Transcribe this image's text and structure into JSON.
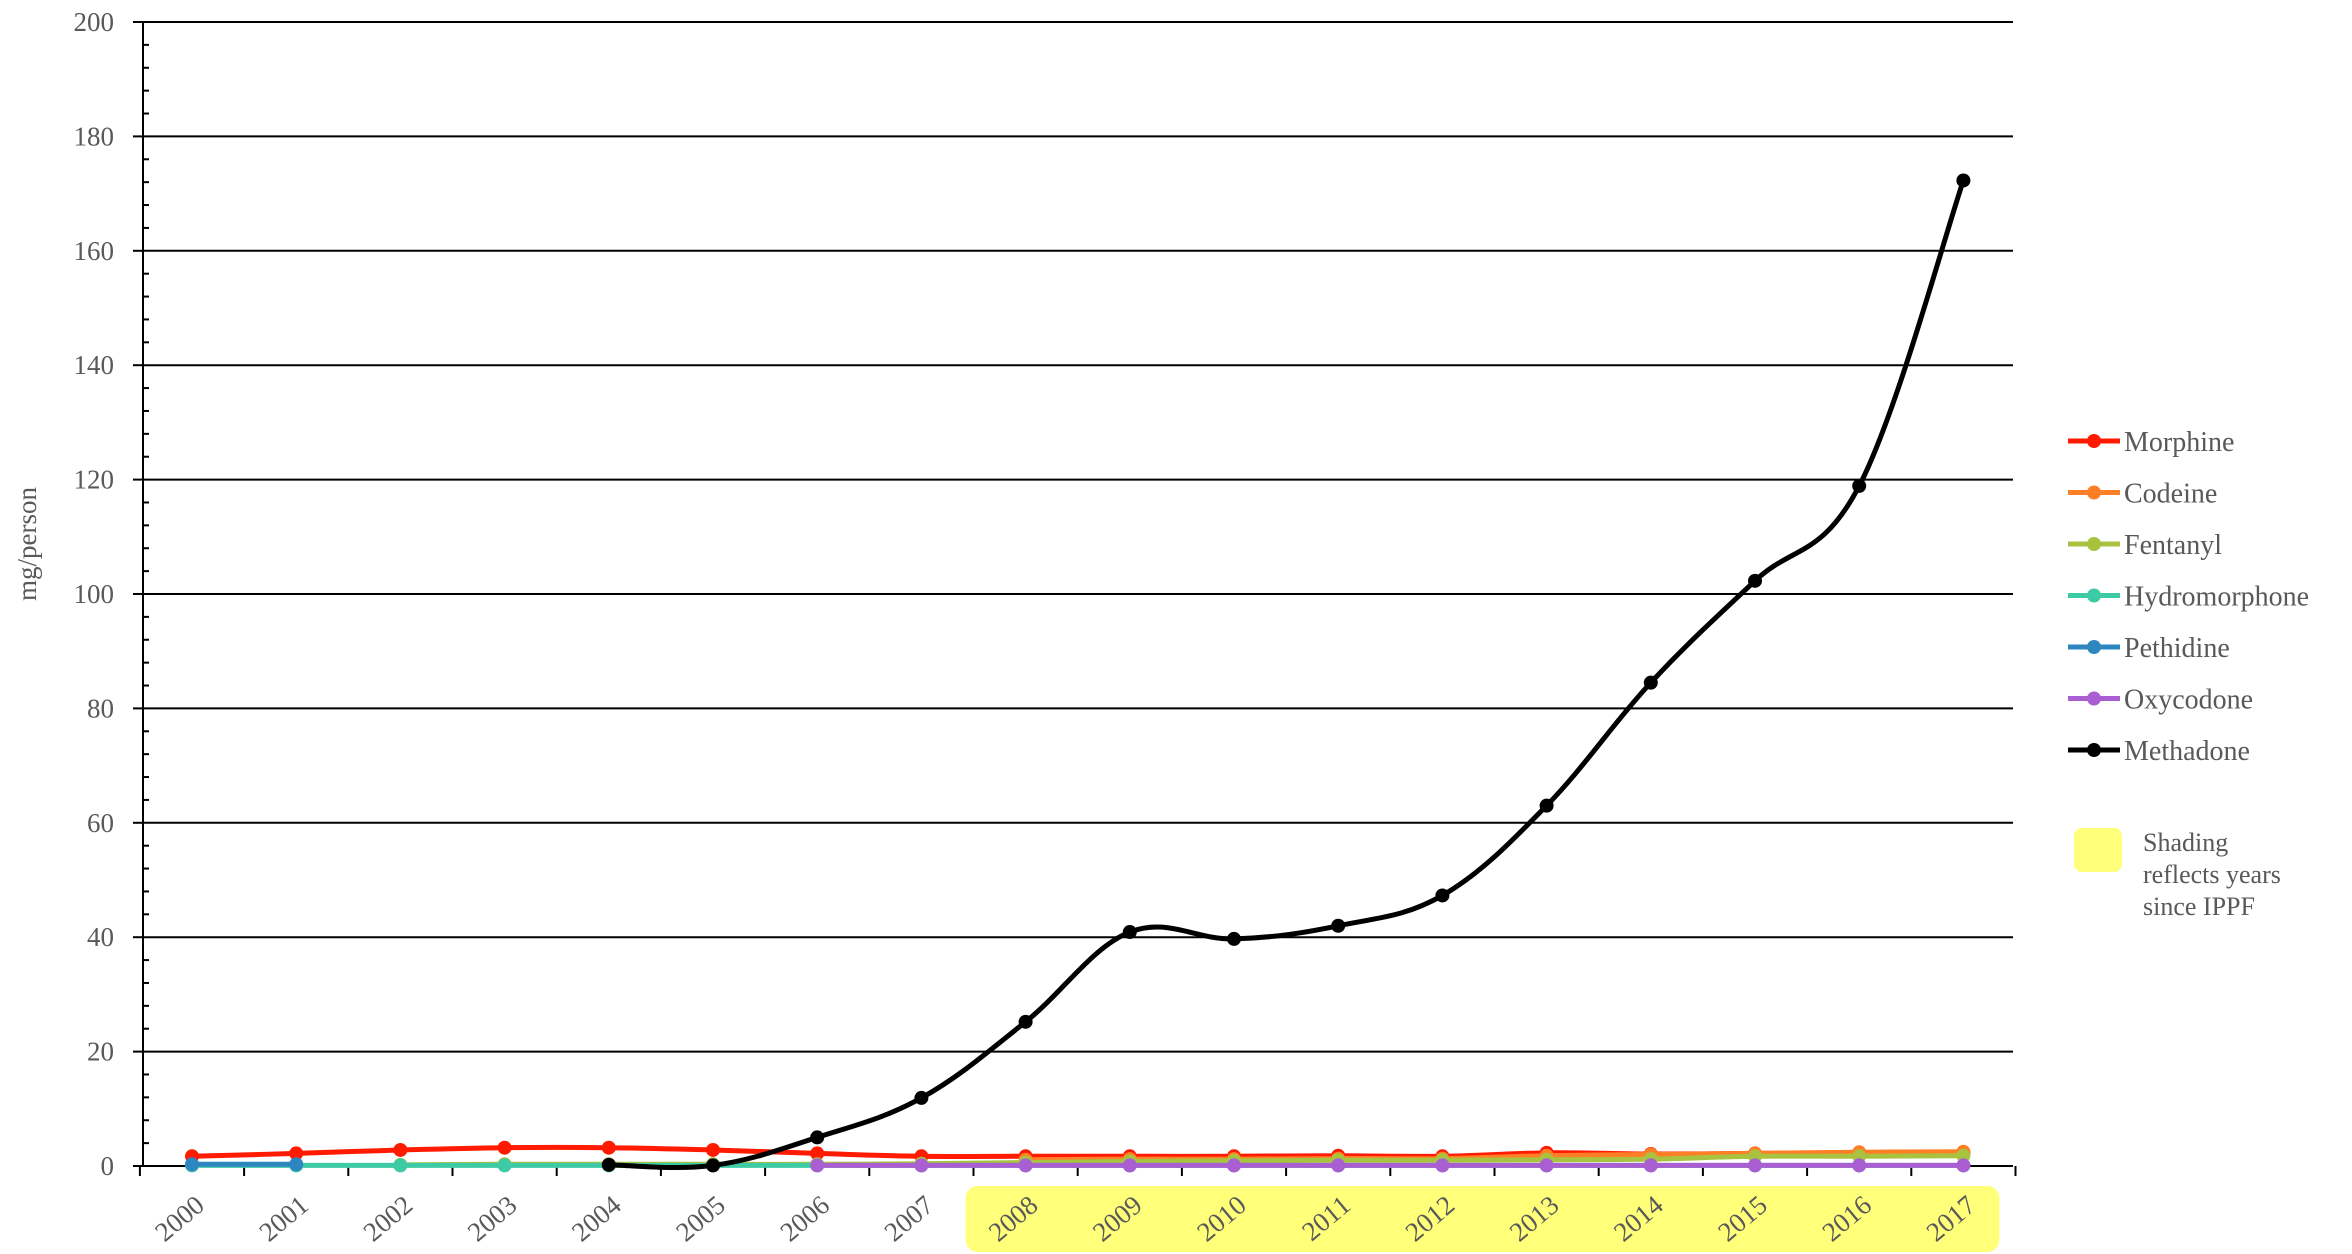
{
  "chart_data": {
    "type": "line",
    "title": "",
    "xlabel": "",
    "ylabel": "mg/person",
    "ylim": [
      0,
      200
    ],
    "y_ticks": [
      "0",
      "20",
      "40",
      "60",
      "80",
      "100",
      "120",
      "140",
      "160",
      "180",
      "200"
    ],
    "categories": [
      "2000",
      "2001",
      "2002",
      "2003",
      "2004",
      "2005",
      "2006",
      "2007",
      "2008",
      "2009",
      "2010",
      "2011",
      "2012",
      "2013",
      "2014",
      "2015",
      "2016",
      "2017"
    ],
    "grid": "horizontal",
    "legend_position": "right",
    "shaded_categories": [
      "2008",
      "2009",
      "2010",
      "2011",
      "2012",
      "2013",
      "2014",
      "2015",
      "2016",
      "2017"
    ],
    "shading_color": "#FFFF7A",
    "shading_note": "Shading reflects years since IPPF",
    "series": [
      {
        "name": "Morphine",
        "color": "#FF1A00",
        "values": [
          1.7,
          2.2,
          2.8,
          3.2,
          3.2,
          2.8,
          2.2,
          1.7,
          1.7,
          1.7,
          1.7,
          1.8,
          1.7,
          2.3,
          2.1,
          2.2,
          2.3,
          2.3
        ]
      },
      {
        "name": "Codeine",
        "color": "#FF7F27",
        "values": [
          null,
          null,
          null,
          null,
          null,
          null,
          null,
          null,
          1.1,
          1.2,
          1.2,
          1.3,
          1.3,
          1.8,
          2.0,
          2.2,
          2.4,
          2.5
        ]
      },
      {
        "name": "Fentanyl",
        "color": "#A9C23F",
        "values": [
          null,
          null,
          0.2,
          0.3,
          0.3,
          0.3,
          0.3,
          0.4,
          0.6,
          0.8,
          0.9,
          1.0,
          1.0,
          1.1,
          1.2,
          1.7,
          1.7,
          1.8
        ]
      },
      {
        "name": "Hydromorphone",
        "color": "#3CCBA4",
        "values": [
          0.1,
          0.1,
          0.1,
          0.1,
          0.1,
          0.1,
          0.1,
          0.1,
          0.1,
          0.1,
          0.1,
          0.1,
          0.1,
          0.1,
          0.1,
          0.1,
          0.1,
          0.1
        ]
      },
      {
        "name": "Pethidine",
        "color": "#2E86C1",
        "values": [
          0.3,
          0.3,
          null,
          null,
          null,
          null,
          null,
          null,
          null,
          null,
          null,
          null,
          null,
          null,
          null,
          null,
          null,
          null
        ]
      },
      {
        "name": "Oxycodone",
        "color": "#A95FD1",
        "values": [
          null,
          null,
          null,
          null,
          null,
          null,
          0.1,
          0.1,
          0.1,
          0.1,
          0.1,
          0.1,
          0.1,
          0.1,
          0.1,
          0.1,
          0.1,
          0.1
        ]
      },
      {
        "name": "Methadone",
        "color": "#000000",
        "values": [
          null,
          null,
          null,
          null,
          0.2,
          0.1,
          5.0,
          11.9,
          25.2,
          40.9,
          39.7,
          42.0,
          47.3,
          63.0,
          84.5,
          102.3,
          118.9,
          172.3
        ]
      }
    ]
  },
  "legend": {
    "note_lines": [
      "Shading",
      "reflects years",
      "since IPPF"
    ]
  }
}
